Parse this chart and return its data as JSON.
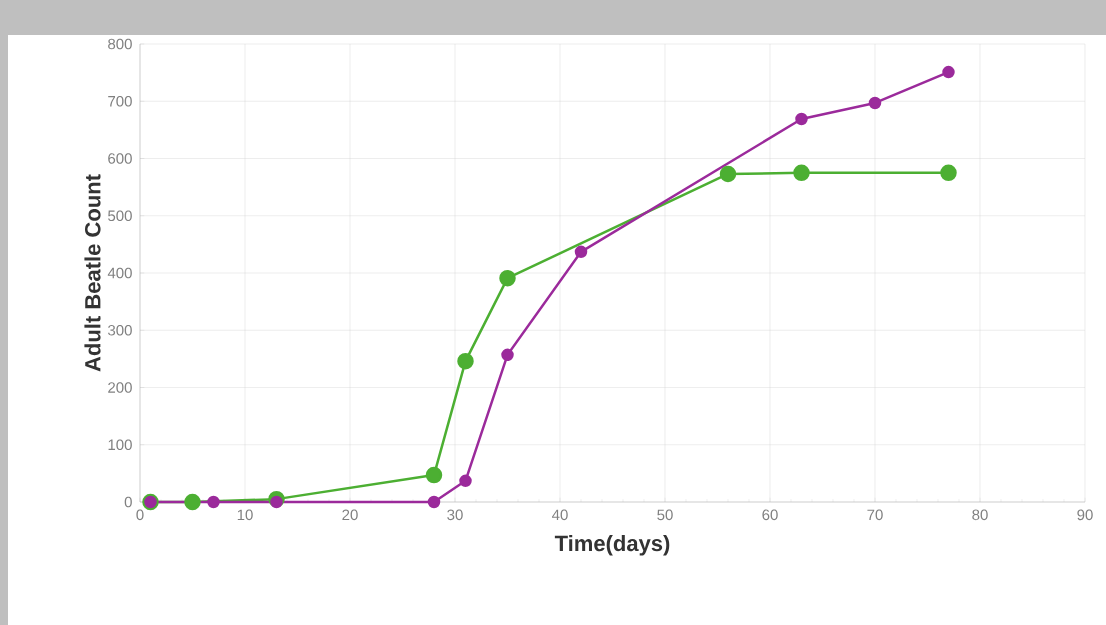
{
  "chart_data": {
    "type": "line",
    "xlabel": "Time(days)",
    "ylabel": "Adult Beatle Count",
    "xlim": [
      0,
      90
    ],
    "xticks": [
      0,
      10,
      20,
      30,
      40,
      50,
      60,
      70,
      80,
      90
    ],
    "ylim": [
      0,
      800
    ],
    "yticks": [
      0,
      100,
      200,
      300,
      400,
      500,
      600,
      700,
      800
    ],
    "grid": true,
    "marker": "circle",
    "line_style": "solid",
    "series": [
      {
        "color": "#4caf32",
        "x": [
          1,
          5,
          13,
          28,
          31,
          35,
          56,
          63,
          77
        ],
        "values": [
          0,
          0,
          5,
          47,
          246,
          391,
          573,
          575,
          575
        ]
      },
      {
        "color": "#9b2a9b",
        "x": [
          1,
          7,
          13,
          28,
          31,
          35,
          42,
          63,
          70,
          77
        ],
        "values": [
          0,
          0,
          0,
          0,
          37,
          257,
          437,
          669,
          697,
          751
        ]
      }
    ]
  }
}
